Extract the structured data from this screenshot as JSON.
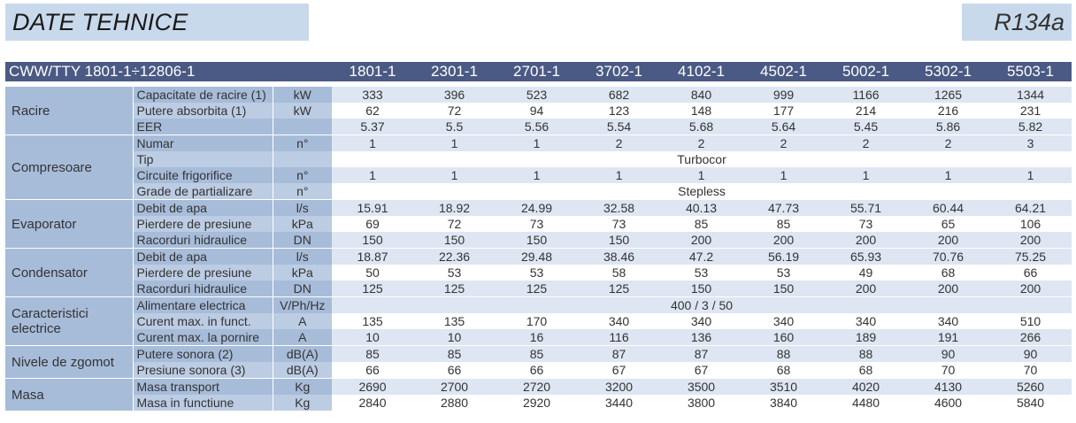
{
  "header": {
    "title": "DATE TEHNICE",
    "refrigerant": "R134a"
  },
  "table": {
    "series_label": "CWW/TTY 1801-1÷12806-1",
    "models": [
      "1801-1",
      "2301-1",
      "2701-1",
      "3702-1",
      "4102-1",
      "4502-1",
      "5002-1",
      "5302-1",
      "5503-1"
    ],
    "groups": [
      {
        "name": "Racire",
        "rows": [
          {
            "param": "Capacitate de racire (1)",
            "unit": "kW",
            "values": [
              "333",
              "396",
              "523",
              "682",
              "840",
              "999",
              "1166",
              "1265",
              "1344"
            ]
          },
          {
            "param": "Putere absorbita (1)",
            "unit": "kW",
            "values": [
              "62",
              "72",
              "94",
              "123",
              "148",
              "177",
              "214",
              "216",
              "231"
            ]
          },
          {
            "param": "EER",
            "unit": "",
            "values": [
              "5.37",
              "5.5",
              "5.56",
              "5.54",
              "5.68",
              "5.64",
              "5.45",
              "5.86",
              "5.82"
            ]
          }
        ]
      },
      {
        "name": "Compresoare",
        "rows": [
          {
            "param": "Numar",
            "unit": "n°",
            "values": [
              "1",
              "1",
              "1",
              "2",
              "2",
              "2",
              "2",
              "2",
              "3"
            ]
          },
          {
            "param": "Tip",
            "unit": "",
            "span": "Turbocor"
          },
          {
            "param": "Circuite frigorifice",
            "unit": "n°",
            "values": [
              "1",
              "1",
              "1",
              "1",
              "1",
              "1",
              "1",
              "1",
              "1"
            ]
          },
          {
            "param": "Grade de partializare",
            "unit": "n°",
            "span": "Stepless"
          }
        ]
      },
      {
        "name": "Evaporator",
        "rows": [
          {
            "param": "Debit de apa",
            "unit": "l/s",
            "values": [
              "15.91",
              "18.92",
              "24.99",
              "32.58",
              "40.13",
              "47.73",
              "55.71",
              "60.44",
              "64.21"
            ]
          },
          {
            "param": "Pierdere de presiune",
            "unit": "kPa",
            "values": [
              "69",
              "72",
              "73",
              "73",
              "85",
              "85",
              "73",
              "65",
              "106"
            ]
          },
          {
            "param": "Racorduri hidraulice",
            "unit": "DN",
            "values": [
              "150",
              "150",
              "150",
              "150",
              "200",
              "200",
              "200",
              "200",
              "200"
            ]
          }
        ]
      },
      {
        "name": "Condensator",
        "rows": [
          {
            "param": "Debit de apa",
            "unit": "l/s",
            "values": [
              "18.87",
              "22.36",
              "29.48",
              "38.46",
              "47.2",
              "56.19",
              "65.93",
              "70.76",
              "75.25"
            ]
          },
          {
            "param": "Pierdere de presiune",
            "unit": "kPa",
            "values": [
              "50",
              "53",
              "53",
              "58",
              "53",
              "53",
              "49",
              "68",
              "66"
            ]
          },
          {
            "param": "Racorduri hidraulice",
            "unit": "DN",
            "values": [
              "125",
              "125",
              "125",
              "125",
              "150",
              "150",
              "200",
              "200",
              "200"
            ]
          }
        ]
      },
      {
        "name": "Caracteristici electrice",
        "rows": [
          {
            "param": "Alimentare electrica",
            "unit": "V/Ph/Hz",
            "span": "400 / 3 / 50"
          },
          {
            "param": "Curent max. in funct.",
            "unit": "A",
            "values": [
              "135",
              "135",
              "170",
              "340",
              "340",
              "340",
              "340",
              "340",
              "510"
            ]
          },
          {
            "param": "Curent max. la pornire",
            "unit": "A",
            "values": [
              "10",
              "10",
              "16",
              "116",
              "136",
              "160",
              "189",
              "191",
              "266"
            ]
          }
        ]
      },
      {
        "name": "Nivele de zgomot",
        "rows": [
          {
            "param": "Putere sonora (2)",
            "unit": "dB(A)",
            "values": [
              "85",
              "85",
              "85",
              "87",
              "87",
              "88",
              "88",
              "90",
              "90"
            ]
          },
          {
            "param": "Presiune sonora (3)",
            "unit": "dB(A)",
            "values": [
              "66",
              "66",
              "66",
              "67",
              "67",
              "68",
              "68",
              "70",
              "70"
            ]
          }
        ]
      },
      {
        "name": "Masa",
        "rows": [
          {
            "param": "Masa transport",
            "unit": "Kg",
            "values": [
              "2690",
              "2700",
              "2720",
              "3200",
              "3500",
              "3510",
              "4020",
              "4130",
              "5260"
            ]
          },
          {
            "param": "Masa in functiune",
            "unit": "Kg",
            "values": [
              "2840",
              "2880",
              "2920",
              "3440",
              "3800",
              "3840",
              "4480",
              "4600",
              "5840"
            ]
          }
        ]
      }
    ]
  }
}
